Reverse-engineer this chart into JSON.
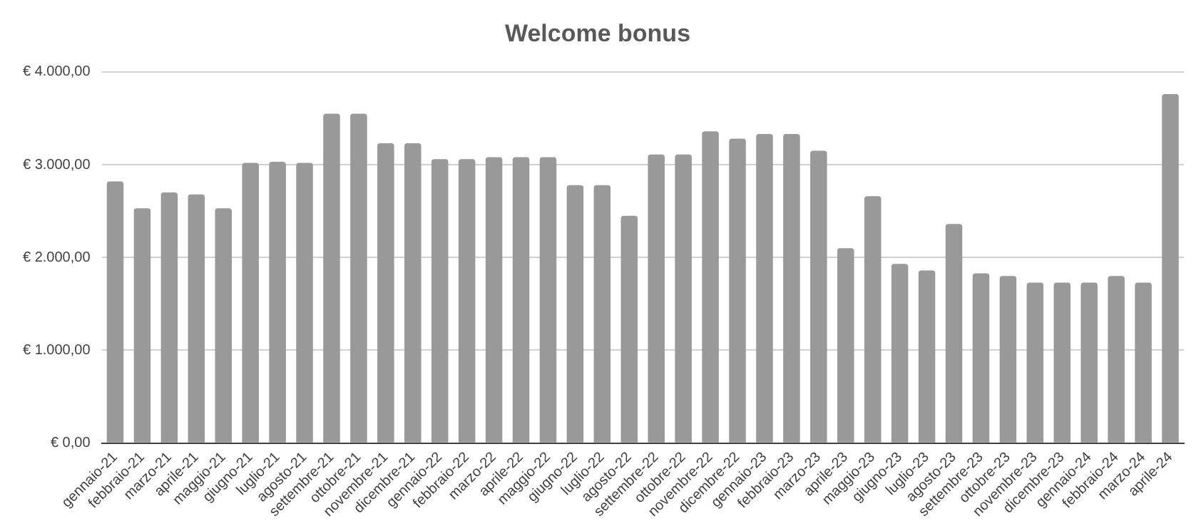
{
  "chart_data": {
    "type": "bar",
    "title": "Welcome bonus",
    "categories": [
      "gennaio-21",
      "febbraio-21",
      "marzo-21",
      "aprile-21",
      "maggio-21",
      "giugno-21",
      "luglio-21",
      "agosto-21",
      "settembre-21",
      "ottobre-21",
      "novembre-21",
      "dicembre-21",
      "gennaio-22",
      "febbraio-22",
      "marzo-22",
      "aprile-22",
      "maggio-22",
      "giugno-22",
      "luglio-22",
      "agosto-22",
      "settembre-22",
      "ottobre-22",
      "novembre-22",
      "dicembre-22",
      "gennaio-23",
      "febbraio-23",
      "marzo-23",
      "aprile-23",
      "maggio-23",
      "giugno-23",
      "luglio-23",
      "agosto-23",
      "settembre-23",
      "ottobre-23",
      "novembre-23",
      "dicembre-23",
      "gennaio-24",
      "febbraio-24",
      "marzo-24",
      "aprile-24"
    ],
    "values": [
      2820,
      2530,
      2700,
      2680,
      2530,
      3020,
      3030,
      3020,
      3550,
      3550,
      3230,
      3230,
      3060,
      3060,
      3080,
      3080,
      3080,
      2780,
      2780,
      2450,
      3110,
      3110,
      3360,
      3280,
      3330,
      3330,
      3150,
      2100,
      2660,
      1930,
      1860,
      2360,
      1830,
      1800,
      1730,
      1730,
      1730,
      1800,
      1730,
      3760
    ],
    "color": "#999999",
    "ylim": [
      0,
      4000
    ],
    "yticks": [
      {
        "value": 0,
        "label": "€ 0,00"
      },
      {
        "value": 1000,
        "label": "€ 1.000,00"
      },
      {
        "value": 2000,
        "label": "€ 2.000,00"
      },
      {
        "value": 3000,
        "label": "€ 3.000,00"
      },
      {
        "value": 4000,
        "label": "€ 4.000,00"
      }
    ],
    "grid": "y"
  }
}
